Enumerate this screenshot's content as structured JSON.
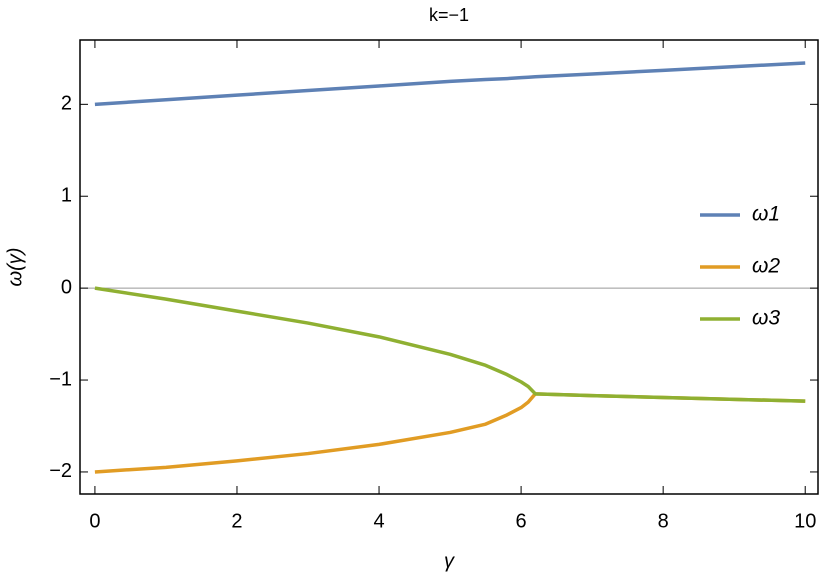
{
  "chart_data": {
    "type": "line",
    "title": "k=−1",
    "x_label": "γ",
    "y_label": "ω(γ)",
    "x": [
      0,
      1,
      2,
      3,
      4,
      5,
      5.5,
      5.8,
      6,
      6.1,
      6.2,
      7,
      8,
      9,
      10
    ],
    "series": [
      {
        "name": "ω1",
        "color": "#5e81b5",
        "values": [
          2,
          2.05,
          2.1,
          2.15,
          2.2,
          2.25,
          2.27,
          2.28,
          2.29,
          2.295,
          2.3,
          2.33,
          2.37,
          2.41,
          2.45
        ]
      },
      {
        "name": "ω2",
        "color": "#e19c24",
        "values": [
          -2,
          -1.95,
          -1.88,
          -1.8,
          -1.7,
          -1.57,
          -1.48,
          -1.38,
          -1.3,
          -1.24,
          -1.15,
          -1.17,
          -1.19,
          -1.21,
          -1.23
        ]
      },
      {
        "name": "ω3",
        "color": "#8fb032",
        "values": [
          0,
          -0.12,
          -0.25,
          -0.38,
          -0.53,
          -0.72,
          -0.84,
          -0.94,
          -1.02,
          -1.07,
          -1.15,
          -1.17,
          -1.19,
          -1.21,
          -1.23
        ]
      }
    ],
    "xlim": [
      -0.21,
      10.18
    ],
    "ylim": [
      -2.24,
      2.7
    ],
    "xticks": [
      0,
      2,
      4,
      6,
      8,
      10
    ],
    "yticks": [
      {
        "value": -2,
        "label": "−2"
      },
      {
        "value": -1,
        "label": "−1"
      },
      0,
      1,
      2
    ],
    "legend": "right"
  }
}
